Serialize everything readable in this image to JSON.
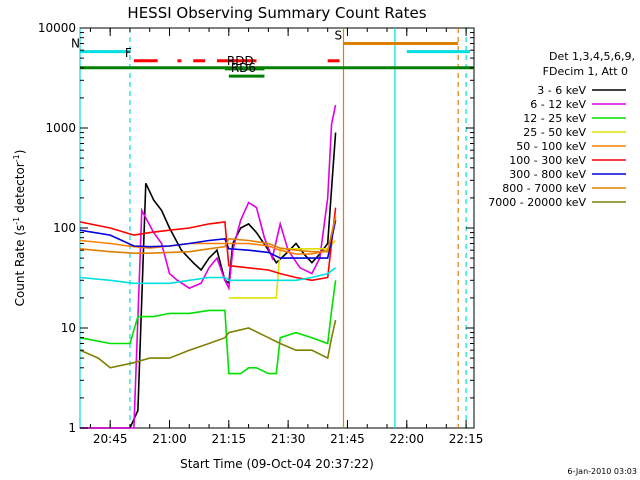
{
  "chart_data": {
    "type": "line",
    "title": "HESSI Observing Summary Count Rates",
    "xlabel": "Start Time (09-Oct-04 20:37:22)",
    "ylabel_main": "Count Rate (s",
    "ylabel_sup1": "-1",
    "ylabel_mid": " detector",
    "ylabel_sup2": "-1",
    "ylabel_end": ")",
    "yscale": "log",
    "ylim": [
      1,
      10000
    ],
    "xlim": [
      "20:37:22",
      "22:17:00"
    ],
    "x_ticks": [
      "20:45",
      "21:00",
      "21:15",
      "21:30",
      "21:45",
      "22:00",
      "22:15"
    ],
    "y_ticks": [
      "1",
      "10",
      "100",
      "1000",
      "10000"
    ],
    "legend_title_1": "Det 1,3,4,5,6,9,",
    "legend_title_2": "FDecim 1, Att 0",
    "legend_position": "right",
    "series": [
      {
        "name": "3 - 6 keV",
        "color": "#000000",
        "x": [
          "20:37:22",
          "20:50",
          "20:52",
          "20:54",
          "20:56",
          "20:58",
          "21:00",
          "21:03",
          "21:06",
          "21:08",
          "21:10",
          "21:12",
          "21:14",
          "21:15",
          "21:16",
          "21:18",
          "21:20",
          "21:22",
          "21:25",
          "21:27",
          "21:30",
          "21:32",
          "21:34",
          "21:36",
          "21:38",
          "21:40",
          "21:41",
          "21:42"
        ],
        "y": [
          1,
          1,
          1.5,
          280,
          190,
          150,
          100,
          60,
          45,
          38,
          50,
          60,
          30,
          28,
          70,
          100,
          110,
          90,
          60,
          45,
          58,
          70,
          55,
          45,
          55,
          70,
          250,
          900
        ]
      },
      {
        "name": "6 - 12 keV",
        "color": "#e000e0",
        "x": [
          "20:37:22",
          "20:44",
          "20:49",
          "20:51",
          "20:53",
          "20:56",
          "20:58",
          "21:00",
          "21:02",
          "21:05",
          "21:08",
          "21:10",
          "21:12",
          "21:14",
          "21:15",
          "21:16",
          "21:18",
          "21:20",
          "21:22",
          "21:24",
          "21:26",
          "21:28",
          "21:30",
          "21:33",
          "21:36",
          "21:38",
          "21:40",
          "21:41",
          "21:42"
        ],
        "y": [
          1,
          1,
          1,
          1,
          150,
          90,
          70,
          35,
          30,
          25,
          28,
          40,
          50,
          30,
          25,
          60,
          120,
          180,
          160,
          80,
          50,
          110,
          60,
          40,
          35,
          50,
          200,
          1100,
          1700
        ]
      },
      {
        "name": "12 - 25 keV",
        "color": "#00e000",
        "x": [
          "20:37:22",
          "20:45",
          "20:50",
          "20:52",
          "20:56",
          "21:00",
          "21:05",
          "21:10",
          "21:14",
          "21:15",
          "21:18",
          "21:20",
          "21:22",
          "21:25",
          "21:27",
          "21:28",
          "21:32",
          "21:36",
          "21:40",
          "21:41",
          "21:42"
        ],
        "y": [
          8,
          7,
          7,
          13,
          13,
          14,
          14,
          15,
          15,
          3.5,
          3.5,
          4,
          4,
          3.5,
          3.5,
          8,
          9,
          8,
          7,
          15,
          30
        ]
      },
      {
        "name": "25 - 50 keV",
        "color": "#e0e000",
        "x": [
          "21:15",
          "21:20",
          "21:25",
          "21:27",
          "21:28",
          "21:32",
          "21:36",
          "21:40",
          "21:42"
        ],
        "y": [
          20,
          20,
          20,
          20,
          62,
          62,
          62,
          62,
          75
        ]
      },
      {
        "name": "50 - 100 keV",
        "color": "#ff8000",
        "x": [
          "20:37:22",
          "20:45",
          "20:51",
          "20:55",
          "21:00",
          "21:05",
          "21:10",
          "21:14",
          "21:15",
          "21:20",
          "21:25",
          "21:28",
          "21:32",
          "21:36",
          "21:40",
          "21:42"
        ],
        "y": [
          75,
          70,
          65,
          63,
          66,
          70,
          70,
          70,
          70,
          70,
          66,
          60,
          55,
          55,
          60,
          130
        ]
      },
      {
        "name": "100 - 300 keV",
        "color": "#ff0000",
        "x": [
          "20:37:22",
          "20:45",
          "20:51",
          "20:55",
          "21:00",
          "21:05",
          "21:10",
          "21:14",
          "21:15",
          "21:20",
          "21:25",
          "21:28",
          "21:32",
          "21:36",
          "21:40",
          "21:42"
        ],
        "y": [
          115,
          100,
          85,
          90,
          95,
          100,
          110,
          115,
          42,
          40,
          38,
          35,
          32,
          30,
          32,
          160
        ]
      },
      {
        "name": "300 - 800 keV",
        "color": "#0000e0",
        "x": [
          "20:37:22",
          "20:45",
          "20:51",
          "20:55",
          "21:00",
          "21:05",
          "21:10",
          "21:14",
          "21:15",
          "21:20",
          "21:25",
          "21:28",
          "21:32",
          "21:36",
          "21:40",
          "21:42"
        ],
        "y": [
          95,
          85,
          66,
          65,
          66,
          70,
          75,
          78,
          62,
          60,
          57,
          50,
          50,
          50,
          50,
          120
        ]
      },
      {
        "name": "800 - 7000 keV",
        "color": "#e08000",
        "x": [
          "20:37:22",
          "20:45",
          "20:51",
          "20:55",
          "21:00",
          "21:05",
          "21:10",
          "21:14",
          "21:15",
          "21:20",
          "21:25",
          "21:28",
          "21:32",
          "21:36",
          "21:40",
          "21:42"
        ],
        "y": [
          62,
          58,
          56,
          56,
          57,
          58,
          62,
          65,
          78,
          75,
          70,
          63,
          60,
          58,
          58,
          130
        ]
      },
      {
        "name": "7000 - 20000 keV",
        "color": "#808000",
        "x": [
          "20:37:22",
          "20:42",
          "20:45",
          "20:51",
          "20:55",
          "21:00",
          "21:05",
          "21:10",
          "21:14",
          "21:15",
          "21:20",
          "21:25",
          "21:28",
          "21:32",
          "21:36",
          "21:40",
          "21:41",
          "21:42"
        ],
        "y": [
          6,
          5,
          4,
          4.5,
          5,
          5,
          6,
          7,
          8,
          9,
          10,
          8,
          7,
          6,
          6,
          5,
          8,
          12
        ]
      },
      {
        "name": "",
        "color": "#00e0e0",
        "x": [
          "20:37:22",
          "20:45",
          "20:51",
          "20:55",
          "21:00",
          "21:05",
          "21:10",
          "21:14",
          "21:15",
          "21:20",
          "21:25",
          "21:27",
          "21:28",
          "21:32",
          "21:36",
          "21:40",
          "21:42"
        ],
        "y": [
          32,
          30,
          28,
          28,
          28,
          30,
          32,
          32,
          30,
          30,
          30,
          30,
          30,
          30,
          32,
          35,
          40
        ]
      }
    ],
    "flags": [
      {
        "label": "N",
        "color": "#00e0e0",
        "y": 5800,
        "segments": [
          [
            "20:37:22",
            "20:50"
          ],
          [
            "22:00",
            "22:16"
          ]
        ]
      },
      {
        "label": "F",
        "color": "#ff0000",
        "y": 4700,
        "segments": [
          [
            "20:51",
            "20:57"
          ],
          [
            "21:02",
            "21:03"
          ],
          [
            "21:06",
            "21:09"
          ],
          [
            "21:12",
            "21:22"
          ],
          [
            "21:40",
            "21:43"
          ]
        ]
      },
      {
        "label": "S",
        "color": "#e08000",
        "y": 7000,
        "segments": [
          [
            "21:44",
            "22:13"
          ]
        ]
      },
      {
        "label": "",
        "color": "#008000",
        "y": 4000,
        "segments": [
          [
            "20:37:22",
            "22:17"
          ]
        ]
      },
      {
        "label": "RDD",
        "color": "#008000",
        "y": 3900,
        "segments": [
          [
            "21:14",
            "21:24"
          ]
        ]
      },
      {
        "label": "RD6",
        "color": "#008000",
        "y": 3300,
        "segments": [
          [
            "21:15",
            "21:24"
          ]
        ]
      }
    ],
    "vlines": [
      {
        "x": "20:37:22",
        "color": "#00e0e0",
        "dashed": false
      },
      {
        "x": "20:50",
        "color": "#00e0e0",
        "dashed": true
      },
      {
        "x": "21:44",
        "color": "#e08000",
        "dashed": false
      },
      {
        "x": "21:57",
        "color": "#00e0e0",
        "dashed": false
      },
      {
        "x": "22:13",
        "color": "#e08000",
        "dashed": true
      },
      {
        "x": "22:15",
        "color": "#00e0e0",
        "dashed": true
      }
    ],
    "footer_date": "6-Jan-2010 03:03"
  }
}
